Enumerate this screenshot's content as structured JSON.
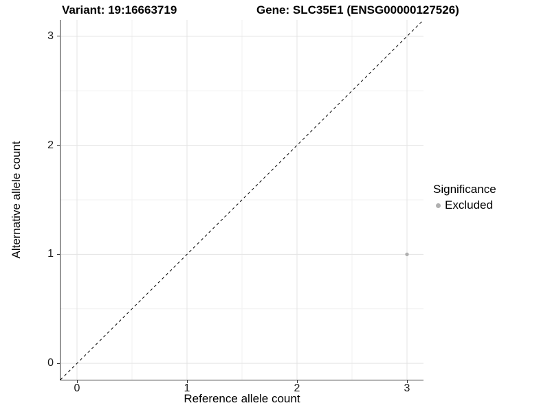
{
  "titles": {
    "variant": "Variant: 19:16663719",
    "gene": "Gene: SLC35E1 (ENSG00000127526)"
  },
  "legend": {
    "title": "Significance",
    "items": [
      {
        "label": "Excluded",
        "color": "#b0b0b0"
      }
    ]
  },
  "chart_data": {
    "type": "scatter",
    "title": "Variant: 19:16663719  /  Gene: SLC35E1 (ENSG00000127526)",
    "xlabel": "Reference allele count",
    "ylabel": "Alternative allele count",
    "xlim": [
      -0.15,
      3.15
    ],
    "ylim": [
      -0.15,
      3.15
    ],
    "xticks": [
      0,
      1,
      2,
      3
    ],
    "yticks": [
      0,
      1,
      2,
      3
    ],
    "minor_ticks": [
      0.5,
      1.5,
      2.5
    ],
    "grid": true,
    "legend_position": "right",
    "series": [
      {
        "name": "Excluded",
        "color": "#b0b0b0",
        "points": [
          {
            "x": 3,
            "y": 1
          }
        ]
      }
    ],
    "reference_line": {
      "type": "identity",
      "style": "dashed",
      "color": "#000000",
      "from": [
        -0.15,
        -0.15
      ],
      "to": [
        3.15,
        3.15
      ]
    },
    "colors": {
      "grid_major": "#e3e3e3",
      "grid_minor": "#f1f1f1",
      "axis_line": "#333333",
      "point": "#b0b0b0"
    }
  }
}
